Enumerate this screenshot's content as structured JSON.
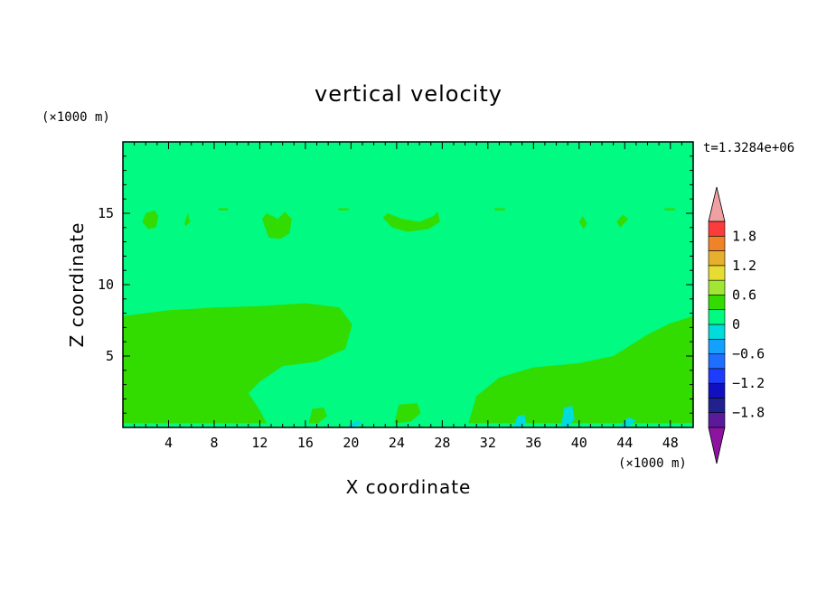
{
  "chart_data": {
    "type": "heatmap",
    "title": "vertical velocity",
    "xlabel": "X coordinate",
    "ylabel": "Z coordinate",
    "x_unit": "(×1000 m)",
    "y_unit": "(×1000 m)",
    "time_label": "t=1.3284e+06",
    "xlim": [
      0,
      50
    ],
    "ylim": [
      0,
      20
    ],
    "x_ticks": [
      4,
      8,
      12,
      16,
      20,
      24,
      28,
      32,
      36,
      40,
      44,
      48
    ],
    "y_ticks": [
      5,
      10,
      15
    ],
    "colorbar": {
      "levels": [
        -2.1,
        -1.8,
        -1.5,
        -1.2,
        -0.9,
        -0.6,
        -0.3,
        0,
        0.3,
        0.6,
        0.9,
        1.2,
        1.5,
        1.8,
        2.1
      ],
      "colors": [
        "#5a1a9a",
        "#20208e",
        "#1010c0",
        "#1e3cff",
        "#1e6eff",
        "#14a0ff",
        "#00dcdc",
        "#00fa82",
        "#32dc00",
        "#a0e632",
        "#e6dc32",
        "#e6af2d",
        "#f08228",
        "#fa3c3c",
        "#ff1414"
      ],
      "under_color": "#8c14a0",
      "over_color": "#f0a0a0",
      "tick_labels": [
        {
          "v": 1.8,
          "label": "1.8"
        },
        {
          "v": 1.2,
          "label": "1.2"
        },
        {
          "v": 0.6,
          "label": "0.6"
        },
        {
          "v": 0,
          "label": "0"
        },
        {
          "v": -0.6,
          "label": "−0.6"
        },
        {
          "v": -1.2,
          "label": "−1.2"
        },
        {
          "v": -1.8,
          "label": "−1.8"
        }
      ]
    },
    "background_level_color": "#00fa82",
    "regions": [
      {
        "level": "0 to 0.3",
        "color": "#32dc00",
        "x": [
          0,
          4,
          8,
          12,
          16,
          19,
          20.1,
          19.5,
          17,
          14,
          12,
          11,
          11.5,
          12,
          12.6,
          0
        ],
        "z": [
          7.8,
          8.2,
          8.4,
          8.5,
          8.7,
          8.4,
          7.2,
          5.5,
          4.6,
          4.3,
          3.2,
          2.4,
          1.8,
          1.2,
          0.3,
          0.3
        ]
      },
      {
        "level": "0 to 0.3",
        "color": "#32dc00",
        "x": [
          30.3,
          31,
          33,
          36,
          40,
          43,
          46,
          48,
          50,
          50,
          30.3
        ],
        "z": [
          0.3,
          2.2,
          3.5,
          4.2,
          4.5,
          5.0,
          6.5,
          7.3,
          7.8,
          0.3,
          0.3
        ]
      },
      {
        "level": "0 to 0.3",
        "color": "#32dc00",
        "x": [
          16.3,
          16.6,
          17.6,
          17.9,
          17.1,
          16.3
        ],
        "z": [
          0.3,
          1.3,
          1.4,
          0.8,
          0.3,
          0.3
        ]
      },
      {
        "level": "0 to 0.3",
        "color": "#32dc00",
        "x": [
          23.8,
          24.2,
          25.8,
          26.1,
          25.2,
          23.8
        ],
        "z": [
          0.3,
          1.6,
          1.7,
          1.0,
          0.4,
          0.3
        ]
      },
      {
        "level": "0 to 0.3",
        "color": "#32dc00",
        "x": [
          1.7,
          2,
          2.8,
          3.1,
          2.9,
          2.2,
          1.7
        ],
        "z": [
          14.4,
          15.0,
          15.2,
          14.8,
          14.0,
          13.9,
          14.4
        ]
      },
      {
        "level": "0 to 0.3",
        "color": "#32dc00",
        "x": [
          12.2,
          12.6,
          13.6,
          14.2,
          14.8,
          14.6,
          13.8,
          12.8,
          12.2
        ],
        "z": [
          14.6,
          15.0,
          14.6,
          15.1,
          14.6,
          13.6,
          13.2,
          13.3,
          14.6
        ]
      },
      {
        "level": "0 to 0.3",
        "color": "#32dc00",
        "x": [
          22.8,
          23.2,
          24.5,
          26,
          27.2,
          27.6,
          27.8,
          26.8,
          25,
          23.6,
          22.8
        ],
        "z": [
          14.7,
          15.0,
          14.6,
          14.4,
          14.8,
          15.1,
          14.4,
          13.9,
          13.7,
          14.0,
          14.7
        ]
      },
      {
        "level": "0 to 0.3",
        "color": "#32dc00",
        "x": [
          5.4,
          5.7,
          5.9,
          5.5,
          5.4
        ],
        "z": [
          14.3,
          15.0,
          14.4,
          14.1,
          14.3
        ]
      },
      {
        "level": "0 to 0.3",
        "color": "#32dc00",
        "x": [
          40.0,
          40.3,
          40.7,
          40.4,
          40.0
        ],
        "z": [
          14.4,
          14.8,
          14.3,
          13.9,
          14.4
        ]
      },
      {
        "level": "0 to 0.3",
        "color": "#32dc00",
        "x": [
          43.3,
          43.8,
          44.3,
          43.6,
          43.3
        ],
        "z": [
          14.4,
          14.9,
          14.6,
          14.0,
          14.4
        ]
      },
      {
        "level": "0 to 0.3",
        "color": "#32dc00",
        "x": [
          8.4,
          9.2,
          9.2,
          8.4
        ],
        "z": [
          15.2,
          15.2,
          15.35,
          15.35
        ]
      },
      {
        "level": "0 to 0.3",
        "color": "#32dc00",
        "x": [
          18.9,
          19.8,
          19.8,
          18.9
        ],
        "z": [
          15.2,
          15.2,
          15.35,
          15.35
        ]
      },
      {
        "level": "0 to 0.3",
        "color": "#32dc00",
        "x": [
          32.6,
          33.5,
          33.5,
          32.6
        ],
        "z": [
          15.2,
          15.2,
          15.35,
          15.35
        ]
      },
      {
        "level": "0 to 0.3",
        "color": "#32dc00",
        "x": [
          47.5,
          48.4,
          48.4,
          47.5
        ],
        "z": [
          15.2,
          15.2,
          15.35,
          15.35
        ]
      },
      {
        "level": "-0.3 to 0",
        "color": "#00dcdc",
        "x": [
          34.2,
          34.6,
          35.2,
          35.4,
          34.8,
          34.2
        ],
        "z": [
          0,
          0.8,
          0.9,
          0.3,
          0,
          0
        ]
      },
      {
        "level": "-0.3 to 0",
        "color": "#00dcdc",
        "x": [
          38.4,
          38.7,
          39.4,
          39.6,
          39.0,
          38.4
        ],
        "z": [
          0,
          1.4,
          1.5,
          0.6,
          0,
          0
        ]
      },
      {
        "level": "-0.3 to 0",
        "color": "#00dcdc",
        "x": [
          43.5,
          44.3,
          45.0,
          44.2,
          43.5
        ],
        "z": [
          0,
          0.7,
          0.5,
          0,
          0
        ]
      },
      {
        "level": "-0.3 to 0",
        "color": "#00dcdc",
        "x": [
          19.5,
          20.5,
          21.0,
          20.2,
          19.5
        ],
        "z": [
          0,
          0.5,
          0.3,
          0,
          0
        ]
      }
    ]
  }
}
